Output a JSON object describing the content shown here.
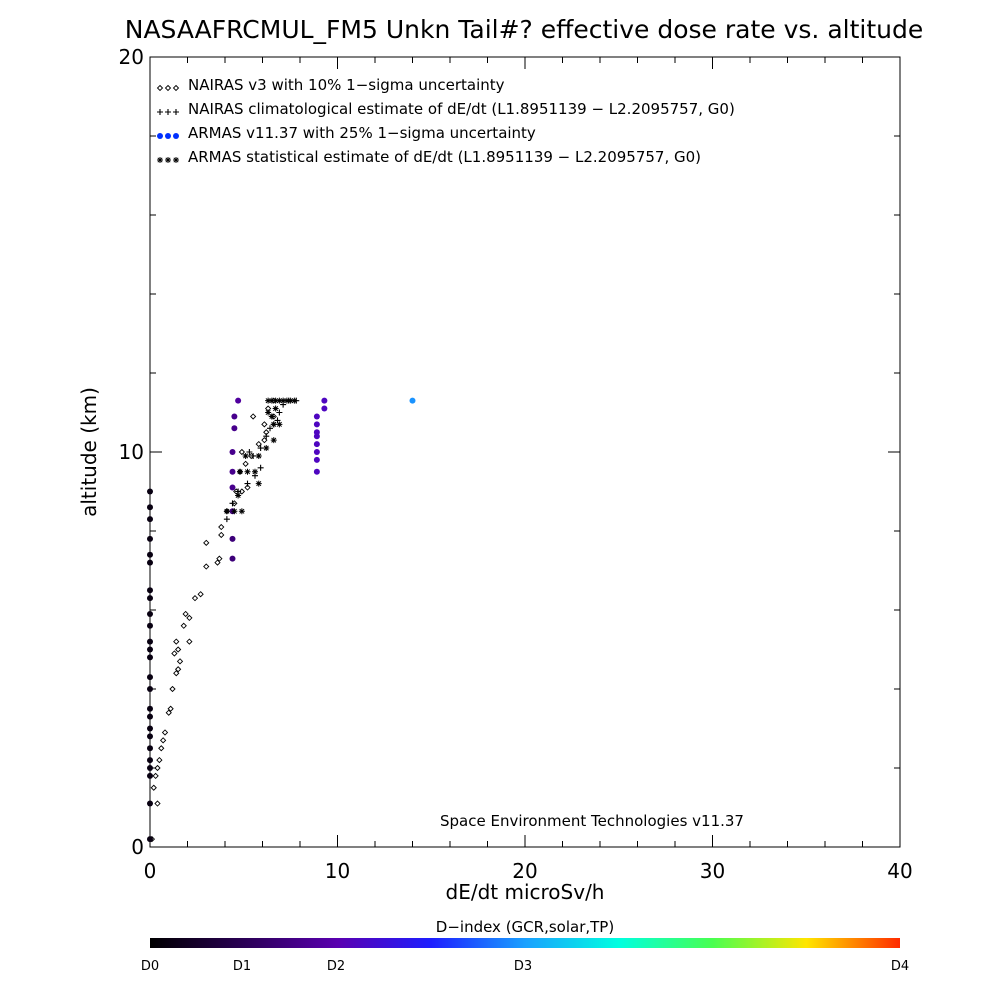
{
  "chart_data": {
    "type": "scatter",
    "title": "NASAAFRCMUL_FM5 Unkn Tail#? effective dose rate vs. altitude",
    "xlabel": "dE/dt microSv/h",
    "ylabel": "altitude (km)",
    "xlim": [
      0,
      40
    ],
    "ylim": [
      0,
      20
    ],
    "x_ticks": [
      "0",
      "10",
      "20",
      "30",
      "40"
    ],
    "y_ticks": [
      "0",
      "10",
      "20"
    ],
    "legend_position": "top-left",
    "annotation": "Space Environment Technologies v11.37",
    "colorbar": {
      "label": "D−index (GCR,solar,TP)",
      "ticks": [
        {
          "label": "D0",
          "value": 0
        },
        {
          "label": "D1",
          "value": 1
        },
        {
          "label": "D2",
          "value": 2
        },
        {
          "label": "D3",
          "value": 3
        },
        {
          "label": "D4",
          "value": 4
        }
      ]
    },
    "series": [
      {
        "name": "NAIRAS v3 with 10% 1−sigma uncertainty",
        "marker": "diamond",
        "color": "#000000",
        "points": [
          [
            0.1,
            0.2
          ],
          [
            0.4,
            1.1
          ],
          [
            0.2,
            1.5
          ],
          [
            0.3,
            1.8
          ],
          [
            0.4,
            2.0
          ],
          [
            0.5,
            2.2
          ],
          [
            0.6,
            2.5
          ],
          [
            0.7,
            2.7
          ],
          [
            0.8,
            2.9
          ],
          [
            1.0,
            3.4
          ],
          [
            1.1,
            3.5
          ],
          [
            1.2,
            4.0
          ],
          [
            1.4,
            4.4
          ],
          [
            1.5,
            4.5
          ],
          [
            1.6,
            4.7
          ],
          [
            1.3,
            4.9
          ],
          [
            1.5,
            5.0
          ],
          [
            1.4,
            5.2
          ],
          [
            2.1,
            5.2
          ],
          [
            1.8,
            5.6
          ],
          [
            2.1,
            5.8
          ],
          [
            1.9,
            5.9
          ],
          [
            2.4,
            6.3
          ],
          [
            2.7,
            6.4
          ],
          [
            3.0,
            7.1
          ],
          [
            3.6,
            7.2
          ],
          [
            3.7,
            7.3
          ],
          [
            3.0,
            7.7
          ],
          [
            3.8,
            7.9
          ],
          [
            3.8,
            8.1
          ],
          [
            4.1,
            8.5
          ],
          [
            4.5,
            8.7
          ],
          [
            4.6,
            9.0
          ],
          [
            4.9,
            9.0
          ],
          [
            5.2,
            9.1
          ],
          [
            4.8,
            9.5
          ],
          [
            5.1,
            9.7
          ],
          [
            5.4,
            9.9
          ],
          [
            4.9,
            10.0
          ],
          [
            5.8,
            10.2
          ],
          [
            6.1,
            10.3
          ],
          [
            6.2,
            10.5
          ],
          [
            6.1,
            10.7
          ],
          [
            5.5,
            10.9
          ],
          [
            6.6,
            10.9
          ],
          [
            6.3,
            11.1
          ],
          [
            6.6,
            11.3
          ]
        ]
      },
      {
        "name": "NAIRAS climatological estimate of dE/dt (L1.8951139 − L2.2095757, G0)",
        "marker": "plus",
        "color": "#000000",
        "points": [
          [
            4.1,
            8.3
          ],
          [
            4.4,
            8.7
          ],
          [
            4.7,
            9.0
          ],
          [
            5.2,
            9.2
          ],
          [
            5.6,
            9.4
          ],
          [
            5.9,
            9.6
          ],
          [
            5.5,
            9.9
          ],
          [
            5.3,
            10.0
          ],
          [
            5.9,
            10.1
          ],
          [
            6.2,
            10.4
          ],
          [
            6.4,
            10.6
          ],
          [
            6.6,
            10.7
          ],
          [
            6.8,
            10.8
          ],
          [
            6.5,
            10.9
          ],
          [
            6.9,
            11.0
          ],
          [
            7.1,
            11.2
          ],
          [
            7.4,
            11.3
          ],
          [
            7.8,
            11.3
          ]
        ]
      },
      {
        "name": "ARMAS v11.37 with 25% 1−sigma uncertainty",
        "marker": "filled-circle",
        "color": "#0030ff",
        "points": [
          {
            "x": 0.0,
            "y": 9.0,
            "d": 0.1
          },
          {
            "x": 0.0,
            "y": 8.6,
            "d": 0.1
          },
          {
            "x": 0.0,
            "y": 8.3,
            "d": 0.1
          },
          {
            "x": 0.0,
            "y": 7.8,
            "d": 0.1
          },
          {
            "x": 0.0,
            "y": 7.4,
            "d": 0.1
          },
          {
            "x": 0.0,
            "y": 7.2,
            "d": 0.1
          },
          {
            "x": 0.0,
            "y": 6.5,
            "d": 0.1
          },
          {
            "x": 0.0,
            "y": 6.3,
            "d": 0.1
          },
          {
            "x": 0.0,
            "y": 5.9,
            "d": 0.1
          },
          {
            "x": 0.0,
            "y": 5.6,
            "d": 0.1
          },
          {
            "x": 0.0,
            "y": 5.2,
            "d": 0.1
          },
          {
            "x": 0.0,
            "y": 5.0,
            "d": 0.1
          },
          {
            "x": 0.0,
            "y": 4.8,
            "d": 0.1
          },
          {
            "x": 0.0,
            "y": 4.3,
            "d": 0.1
          },
          {
            "x": 0.0,
            "y": 4.0,
            "d": 0.1
          },
          {
            "x": 0.0,
            "y": 3.5,
            "d": 0.1
          },
          {
            "x": 0.0,
            "y": 3.3,
            "d": 0.1
          },
          {
            "x": 0.0,
            "y": 3.0,
            "d": 0.1
          },
          {
            "x": 0.0,
            "y": 2.8,
            "d": 0.1
          },
          {
            "x": 0.0,
            "y": 2.5,
            "d": 0.1
          },
          {
            "x": 0.0,
            "y": 2.2,
            "d": 0.1
          },
          {
            "x": 0.0,
            "y": 2.0,
            "d": 0.1
          },
          {
            "x": 0.0,
            "y": 1.8,
            "d": 0.1
          },
          {
            "x": 0.0,
            "y": 1.1,
            "d": 0.1
          },
          {
            "x": 0.0,
            "y": 0.2,
            "d": 0.1
          },
          {
            "x": 4.4,
            "y": 7.3,
            "d": 0.7
          },
          {
            "x": 4.4,
            "y": 7.8,
            "d": 0.7
          },
          {
            "x": 4.4,
            "y": 8.5,
            "d": 0.7
          },
          {
            "x": 4.4,
            "y": 9.1,
            "d": 0.8
          },
          {
            "x": 4.4,
            "y": 9.5,
            "d": 0.8
          },
          {
            "x": 4.4,
            "y": 10.0,
            "d": 0.8
          },
          {
            "x": 4.5,
            "y": 10.6,
            "d": 0.8
          },
          {
            "x": 4.5,
            "y": 10.9,
            "d": 0.8
          },
          {
            "x": 4.7,
            "y": 11.3,
            "d": 0.9
          },
          {
            "x": 8.9,
            "y": 9.5,
            "d": 1.1
          },
          {
            "x": 8.9,
            "y": 9.8,
            "d": 1.1
          },
          {
            "x": 8.9,
            "y": 10.0,
            "d": 1.1
          },
          {
            "x": 8.9,
            "y": 10.2,
            "d": 1.1
          },
          {
            "x": 8.9,
            "y": 10.4,
            "d": 1.1
          },
          {
            "x": 8.9,
            "y": 10.5,
            "d": 1.1
          },
          {
            "x": 8.9,
            "y": 10.7,
            "d": 1.1
          },
          {
            "x": 8.9,
            "y": 10.9,
            "d": 1.1
          },
          {
            "x": 9.3,
            "y": 11.1,
            "d": 1.1
          },
          {
            "x": 9.3,
            "y": 11.3,
            "d": 1.1
          },
          {
            "x": 14.0,
            "y": 11.3,
            "d": 1.95
          }
        ]
      },
      {
        "name": "ARMAS statistical estimate of dE/dt (L1.8951139 − L2.2095757, G0)",
        "marker": "asterisk",
        "color": "#000000",
        "points": [
          [
            4.1,
            8.5
          ],
          [
            4.5,
            8.5
          ],
          [
            4.9,
            8.5
          ],
          [
            4.7,
            8.9
          ],
          [
            5.8,
            9.2
          ],
          [
            4.8,
            9.5
          ],
          [
            5.2,
            9.5
          ],
          [
            5.6,
            9.5
          ],
          [
            5.1,
            9.9
          ],
          [
            5.8,
            9.9
          ],
          [
            6.2,
            10.1
          ],
          [
            6.6,
            10.3
          ],
          [
            6.6,
            10.7
          ],
          [
            6.9,
            10.7
          ],
          [
            6.5,
            10.9
          ],
          [
            6.3,
            11.0
          ],
          [
            6.7,
            11.1
          ],
          [
            6.3,
            11.3
          ],
          [
            6.5,
            11.3
          ],
          [
            6.7,
            11.3
          ],
          [
            6.9,
            11.3
          ],
          [
            7.1,
            11.3
          ],
          [
            7.3,
            11.3
          ],
          [
            7.5,
            11.3
          ],
          [
            7.7,
            11.3
          ]
        ]
      }
    ]
  }
}
